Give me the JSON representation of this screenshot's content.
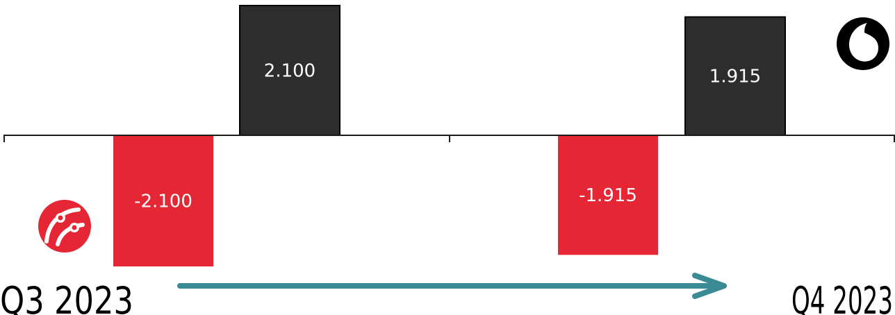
{
  "chart_data": {
    "type": "bar",
    "categories": [
      "Q3 2023",
      "Q4 2023"
    ],
    "series": [
      {
        "values": [
          -2100,
          -1915
        ],
        "labels": [
          "-2.100",
          "-1.915"
        ],
        "color": "#e52634"
      },
      {
        "values": [
          2100,
          1915
        ],
        "labels": [
          "2.100",
          "1.915"
        ],
        "color": "#2d2d2d"
      }
    ],
    "title": "",
    "xlabel": "",
    "ylabel": "",
    "ylim": [
      -2100,
      2100
    ],
    "grid": false,
    "legend": "none",
    "annotations": [
      {
        "type": "arrow",
        "from": "Q3 2023",
        "to": "Q4 2023",
        "color": "#3a8a94"
      }
    ],
    "logos": [
      {
        "name": "turkcell-logo-icon",
        "color": "#e52634",
        "series_index": 0
      },
      {
        "name": "vodafone-logo-icon",
        "color": "#000000",
        "series_index": 1
      }
    ]
  }
}
